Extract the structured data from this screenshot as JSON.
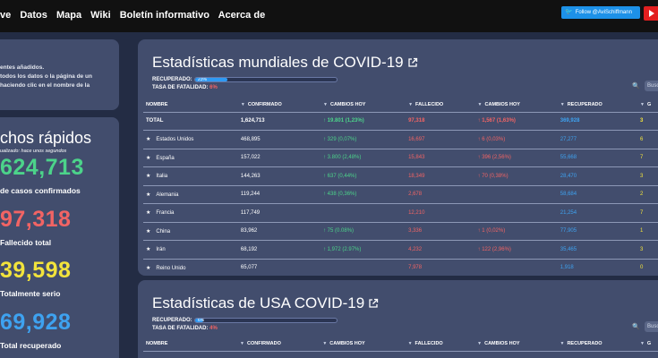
{
  "nav": {
    "items": [
      "ve",
      "Datos",
      "Mapa",
      "Wiki",
      "Boletín informativo",
      "Acerca de"
    ],
    "twitter_label": "Follow @AviSchiffmann"
  },
  "left": {
    "info_lines": [
      "entes añadidos.",
      "todos los datos o la página de un",
      "haciendo clic en el nombre de la"
    ],
    "facts_title": "chos rápidos",
    "facts_updated": "ualizado: hace unos segundos",
    "stats": [
      {
        "value": "624,713",
        "label": "de casos confirmados",
        "color": "#4cd38a"
      },
      {
        "value": "97,318",
        "label": "Fallecido total",
        "color": "#f26464"
      },
      {
        "value": "39,598",
        "label": "Totalmente serio",
        "color": "#f2e33c"
      },
      {
        "value": "69,928",
        "label": "Total recuperado",
        "color": "#3ea2f0"
      }
    ]
  },
  "world": {
    "title": "Estadísticas mundiales de COVID-19",
    "recovered_label": "RECUPERADO:",
    "recovered_pct": "23%",
    "recovered_fraction": 0.23,
    "fatality_label": "TASA DE FATALIDAD:",
    "fatality_value": "6%",
    "search_placeholder": "Busc",
    "columns": [
      "NOMBRE",
      "CONFIRMADO",
      "CAMBIOS HOY",
      "FALLECIDO",
      "CAMBIOS HOY",
      "RECUPERADO",
      "G"
    ],
    "rows": [
      {
        "name": "TOTAL",
        "star": false,
        "confirmed": "1,624,713",
        "change": "↑ 19.801 (1,23%)",
        "deaths": "97,318",
        "dchange": "↑ 1,567 (1,63%)",
        "recovered": "369,928",
        "g": "3"
      },
      {
        "name": "Estados Unidos",
        "star": true,
        "confirmed": "468,895",
        "change": "↑ 329 (0,07%)",
        "deaths": "16,697",
        "dchange": "↑ 6 (0,03%)",
        "recovered": "27,277",
        "g": "6"
      },
      {
        "name": "España",
        "star": true,
        "confirmed": "157,022",
        "change": "↑ 3.800 (2,48%)",
        "deaths": "15,843",
        "dchange": "↑ 396 (2,56%)",
        "recovered": "55,668",
        "g": "7"
      },
      {
        "name": "Italia",
        "star": true,
        "confirmed": "144,263",
        "change": "↑ 637 (0,44%)",
        "deaths": "18,349",
        "dchange": "↑ 70 (0,38%)",
        "recovered": "28,470",
        "g": "3"
      },
      {
        "name": "Alemania",
        "star": true,
        "confirmed": "119,244",
        "change": "↑ 438 (0,36%)",
        "deaths": "2,678",
        "dchange": "",
        "recovered": "58,684",
        "g": "2"
      },
      {
        "name": "Francia",
        "star": true,
        "confirmed": "117,749",
        "change": "",
        "deaths": "12,210",
        "dchange": "",
        "recovered": "21,254",
        "g": "7"
      },
      {
        "name": "China",
        "star": true,
        "confirmed": "83,962",
        "change": "↑ 75 (0.08%)",
        "deaths": "3,336",
        "dchange": "↑ 1 (0,02%)",
        "recovered": "77,905",
        "g": "1"
      },
      {
        "name": "Irán",
        "star": true,
        "confirmed": "68,192",
        "change": "↑ 1,972 (2.97%)",
        "deaths": "4,232",
        "dchange": "↑ 122 (2,96%)",
        "recovered": "35,465",
        "g": "3"
      },
      {
        "name": "Reino Unido",
        "star": true,
        "confirmed": "65,077",
        "change": "",
        "deaths": "7,978",
        "dchange": "",
        "recovered": "1,918",
        "g": "0"
      }
    ]
  },
  "usa": {
    "title": "Estadísticas de USA COVID-19",
    "recovered_label": "RECUPERADO:",
    "recovered_pct": "6%",
    "recovered_fraction": 0.06,
    "fatality_label": "TASA DE FATALIDAD:",
    "fatality_value": "4%",
    "search_placeholder": "Busc",
    "columns": [
      "NOMBRE",
      "CONFIRMADO",
      "CAMBIOS HOY",
      "FALLECIDO",
      "CAMBIOS HOY",
      "RECUPERADO",
      "G"
    ]
  }
}
